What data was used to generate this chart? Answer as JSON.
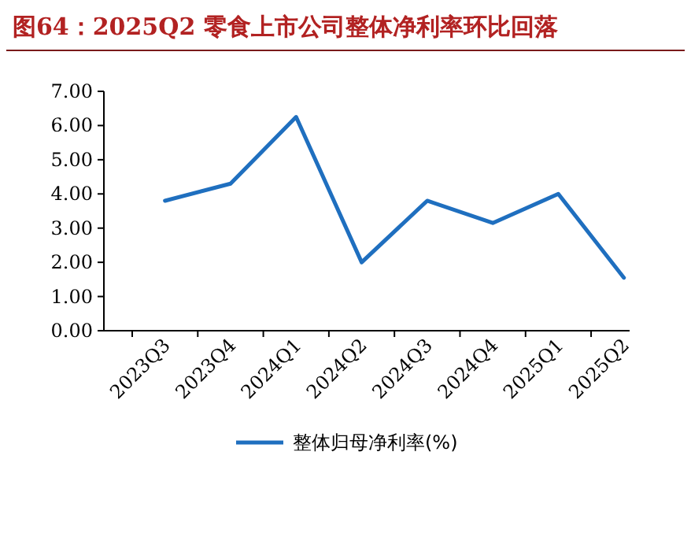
{
  "chart_data": {
    "type": "line",
    "title": "图64：2025Q2 零食上市公司整体净利率环比回落",
    "categories": [
      "2023Q3",
      "2023Q4",
      "2024Q1",
      "2024Q2",
      "2024Q3",
      "2024Q4",
      "2025Q1",
      "2025Q2"
    ],
    "series": [
      {
        "name": "整体归母净利率(%)",
        "color": "#1f6fbf",
        "values": [
          3.8,
          4.3,
          6.25,
          2.0,
          3.8,
          3.15,
          4.0,
          1.55
        ]
      }
    ],
    "ylim": [
      0,
      7
    ],
    "yticks": [
      {
        "value": 0,
        "label": "0.00"
      },
      {
        "value": 1,
        "label": "1.00"
      },
      {
        "value": 2,
        "label": "2.00"
      },
      {
        "value": 3,
        "label": "3.00"
      },
      {
        "value": 4,
        "label": "4.00"
      },
      {
        "value": 5,
        "label": "5.00"
      },
      {
        "value": 6,
        "label": "6.00"
      },
      {
        "value": 7,
        "label": "7.00"
      }
    ],
    "legend": "bottom"
  }
}
